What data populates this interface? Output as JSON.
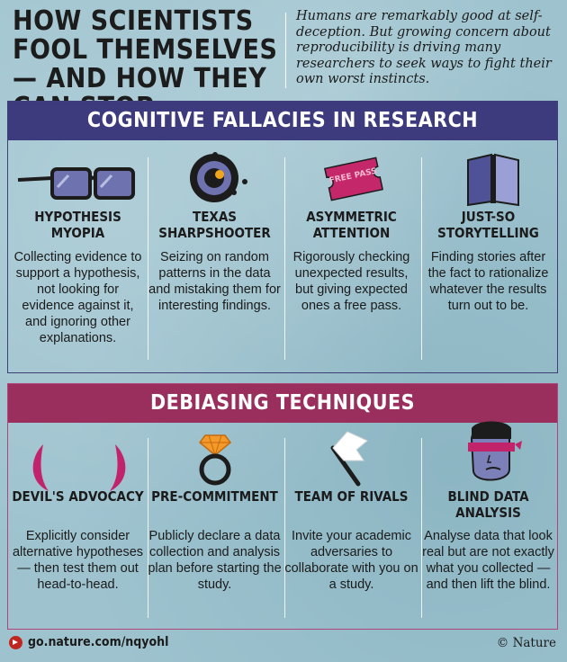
{
  "header": {
    "title": "HOW SCIENTISTS FOOL THEMSELVES — AND HOW THEY CAN STOP",
    "subtitle": "Humans are remarkably good at self-deception. But growing concern about reproducibility is driving many researchers to seek ways to fight their own worst instincts."
  },
  "fallacies": {
    "heading": "COGNITIVE FALLACIES IN RESEARCH",
    "items": [
      {
        "title": "HYPOTHESIS MYOPIA",
        "text": "Collecting evidence to support a hypothesis, not looking for evidence against it, and ignoring other explanations.",
        "icon": "glasses-icon"
      },
      {
        "title": "TEXAS SHARPSHOOTER",
        "text": "Seizing on random patterns in the data and mistaking them for interesting findings.",
        "icon": "target-icon"
      },
      {
        "title": "ASYMMETRIC ATTENTION",
        "text": "Rigorously checking unexpected results, but giving expected ones a free pass.",
        "icon": "ticket-icon",
        "ticket_text": "FREE PASS"
      },
      {
        "title": "JUST-SO STORYTELLING",
        "text": "Finding stories after the fact to rationalize whatever the results turn out to be.",
        "icon": "book-icon"
      }
    ]
  },
  "techniques": {
    "heading": "DEBIASING TECHNIQUES",
    "items": [
      {
        "title": "DEVIL'S ADVOCACY",
        "text": "Explicitly consider alternative hypotheses — then test them out head-to-head.",
        "icon": "devil-horns-icon"
      },
      {
        "title": "PRE-COMMITMENT",
        "text": "Publicly declare a data collection and analysis plan before starting the study.",
        "icon": "ring-icon"
      },
      {
        "title": "TEAM OF RIVALS",
        "text": "Invite your academic adversaries to collaborate with you on a study.",
        "icon": "flag-icon"
      },
      {
        "title": "BLIND DATA ANALYSIS",
        "text": "Analyse data that look real but are not exactly what you collected — and then lift the blind.",
        "icon": "blindfold-face-icon"
      }
    ]
  },
  "footer": {
    "link": "go.nature.com/nqyohl",
    "credit": "© Nature"
  },
  "colors": {
    "panel1_header": "#3d3b7e",
    "panel2_header": "#9a2f5d",
    "background": "#9ec3cf",
    "accent_red": "#c0261f"
  }
}
